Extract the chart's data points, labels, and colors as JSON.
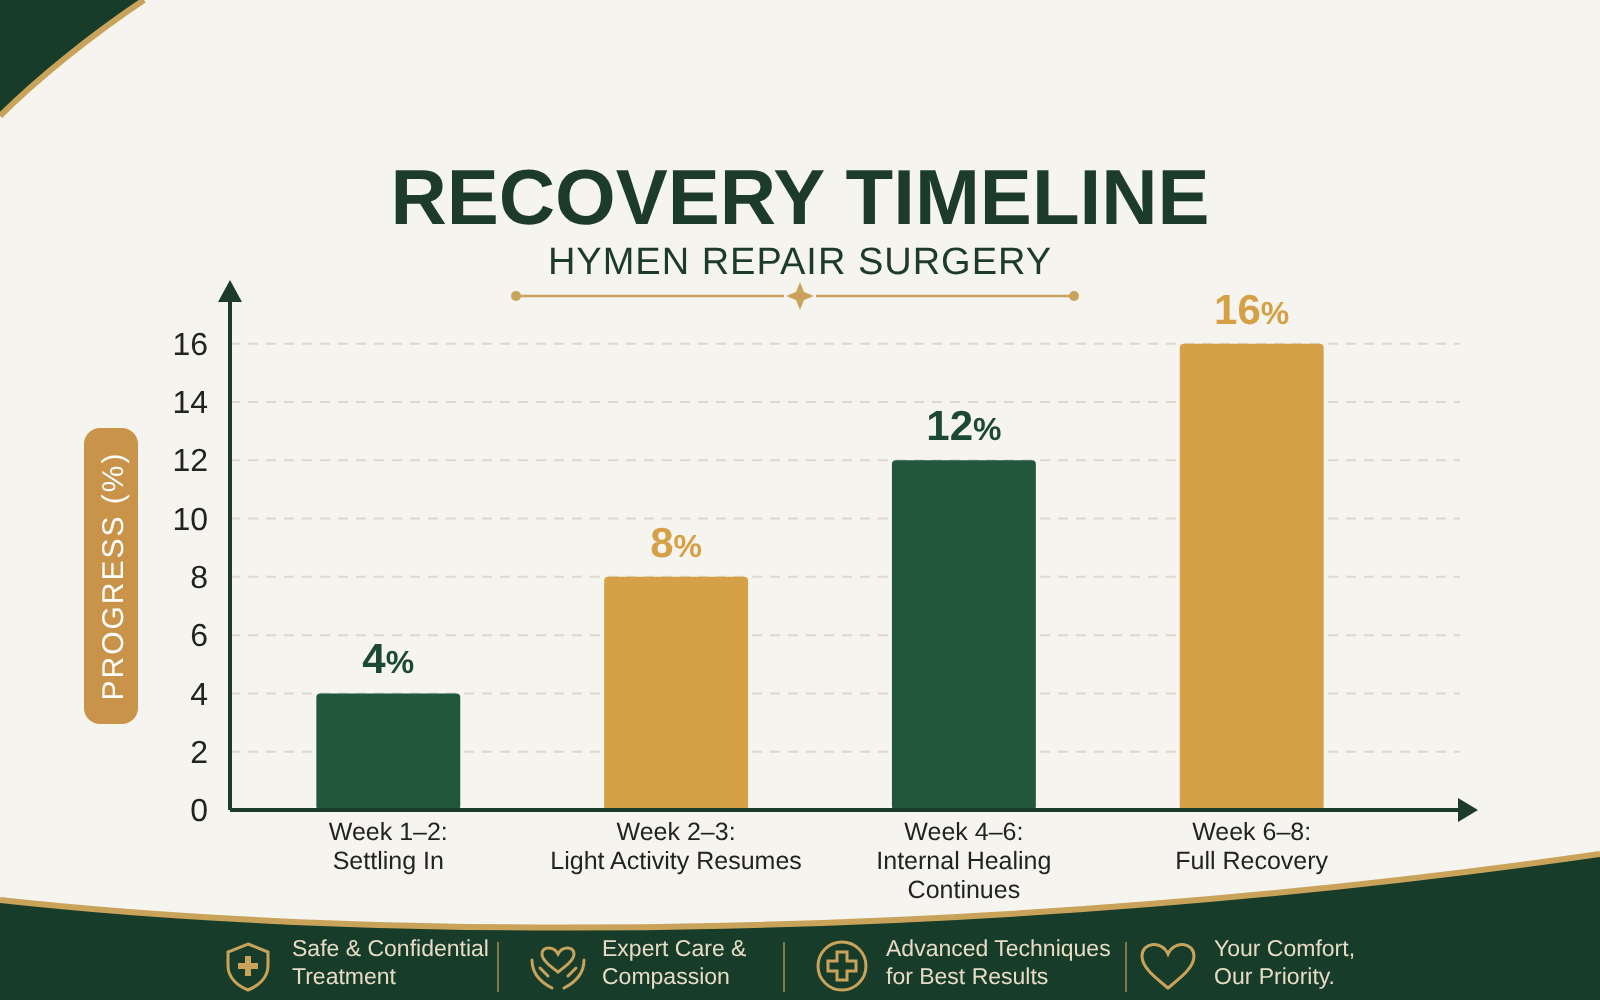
{
  "chart_data": {
    "type": "bar",
    "title": "RECOVERY TIMELINE",
    "subtitle": "HYMEN REPAIR SURGERY",
    "ylabel": "PROGRESS (%)",
    "categories": [
      "Week 1–2:\nSettling In",
      "Week 2–3:\nLight Activity Resumes",
      "Week 4–6:\nInternal Healing\nContinues",
      "Week 6–8:\nFull Recovery"
    ],
    "values": [
      4,
      8,
      12,
      16
    ],
    "colors": [
      "#21573b",
      "#d6a046",
      "#21573b",
      "#d6a046"
    ],
    "value_labels": [
      "4%",
      "8%",
      "12%",
      "16%"
    ],
    "ylim": [
      0,
      17.5
    ],
    "yticks": [
      0,
      2,
      4,
      6,
      8,
      10,
      12,
      14,
      16
    ],
    "grid": "y",
    "annotations": [
      "Safe & Confidential\nTreatment",
      "Expert Care &\nCompassion",
      "Advanced Techniques\nfor Best Results",
      "Your Comfort,\nOur Priority."
    ]
  }
}
